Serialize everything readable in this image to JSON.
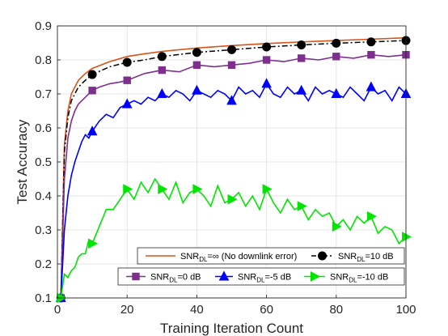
{
  "chart_data": {
    "type": "line",
    "title": "",
    "xlabel": "Training Iteration Count",
    "ylabel": "Test Accuracy",
    "xlim": [
      0,
      100
    ],
    "ylim": [
      0.1,
      0.9
    ],
    "xticks": [
      "0",
      "20",
      "40",
      "60",
      "80",
      "100"
    ],
    "yticks": [
      "0.1",
      "0.2",
      "0.3",
      "0.4",
      "0.5",
      "0.6",
      "0.7",
      "0.8",
      "0.9"
    ],
    "grid": true,
    "series": [
      {
        "name": "=∞ (No downlink error)",
        "color": "#d95319",
        "marker": "none",
        "x": [
          1,
          2,
          3,
          4,
          5,
          6,
          8,
          10,
          15,
          20,
          25,
          30,
          40,
          50,
          60,
          70,
          80,
          90,
          100
        ],
        "y": [
          0.1,
          0.55,
          0.65,
          0.7,
          0.72,
          0.74,
          0.76,
          0.775,
          0.795,
          0.81,
          0.818,
          0.825,
          0.835,
          0.842,
          0.848,
          0.853,
          0.857,
          0.861,
          0.865
        ]
      },
      {
        "name": "=10 dB",
        "color": "#000000",
        "marker": "circle",
        "x": [
          1,
          2,
          3,
          4,
          5,
          6,
          8,
          10,
          15,
          20,
          25,
          30,
          40,
          50,
          60,
          70,
          80,
          90,
          100
        ],
        "y": [
          0.1,
          0.53,
          0.63,
          0.68,
          0.7,
          0.72,
          0.74,
          0.757,
          0.78,
          0.793,
          0.8,
          0.81,
          0.822,
          0.83,
          0.838,
          0.844,
          0.849,
          0.853,
          0.857
        ]
      },
      {
        "name": "=0 dB",
        "color": "#7e2f8e",
        "marker": "square",
        "x": [
          1,
          2,
          3,
          4,
          5,
          6,
          8,
          10,
          12,
          15,
          18,
          20,
          25,
          30,
          35,
          40,
          45,
          50,
          55,
          60,
          65,
          70,
          75,
          80,
          85,
          90,
          95,
          100
        ],
        "y": [
          0.1,
          0.45,
          0.57,
          0.62,
          0.65,
          0.67,
          0.69,
          0.71,
          0.72,
          0.73,
          0.735,
          0.74,
          0.76,
          0.77,
          0.765,
          0.785,
          0.78,
          0.785,
          0.79,
          0.8,
          0.795,
          0.805,
          0.8,
          0.81,
          0.805,
          0.815,
          0.81,
          0.815
        ]
      },
      {
        "name": "=-5 dB",
        "color": "#0000ff",
        "marker": "triangle-up",
        "x": [
          1,
          2,
          3,
          4,
          5,
          6,
          7,
          8,
          9,
          10,
          12,
          14,
          16,
          18,
          20,
          22,
          24,
          26,
          28,
          30,
          32,
          34,
          36,
          38,
          40,
          42,
          44,
          46,
          48,
          50,
          52,
          54,
          56,
          58,
          60,
          62,
          64,
          66,
          68,
          70,
          72,
          74,
          76,
          78,
          80,
          82,
          84,
          86,
          88,
          90,
          92,
          94,
          96,
          98,
          100
        ],
        "y": [
          0.1,
          0.3,
          0.4,
          0.46,
          0.5,
          0.53,
          0.56,
          0.58,
          0.57,
          0.59,
          0.62,
          0.64,
          0.63,
          0.66,
          0.67,
          0.68,
          0.67,
          0.69,
          0.68,
          0.7,
          0.69,
          0.71,
          0.7,
          0.68,
          0.71,
          0.7,
          0.69,
          0.71,
          0.7,
          0.68,
          0.72,
          0.7,
          0.71,
          0.69,
          0.73,
          0.7,
          0.69,
          0.72,
          0.7,
          0.71,
          0.68,
          0.72,
          0.7,
          0.71,
          0.7,
          0.69,
          0.72,
          0.7,
          0.68,
          0.72,
          0.7,
          0.71,
          0.68,
          0.72,
          0.7
        ]
      },
      {
        "name": "=-10 dB",
        "color": "#00e600",
        "marker": "triangle-right",
        "x": [
          1,
          2,
          3,
          4,
          5,
          6,
          7,
          8,
          9,
          10,
          12,
          14,
          16,
          18,
          20,
          22,
          24,
          26,
          28,
          30,
          32,
          34,
          36,
          38,
          40,
          42,
          44,
          46,
          48,
          50,
          52,
          54,
          56,
          58,
          60,
          62,
          64,
          66,
          68,
          70,
          72,
          74,
          76,
          78,
          80,
          82,
          84,
          86,
          88,
          90,
          92,
          94,
          96,
          98,
          100
        ],
        "y": [
          0.1,
          0.17,
          0.16,
          0.18,
          0.19,
          0.22,
          0.23,
          0.23,
          0.27,
          0.26,
          0.31,
          0.36,
          0.36,
          0.39,
          0.42,
          0.39,
          0.44,
          0.41,
          0.45,
          0.42,
          0.39,
          0.44,
          0.38,
          0.41,
          0.42,
          0.4,
          0.37,
          0.43,
          0.38,
          0.39,
          0.41,
          0.37,
          0.4,
          0.36,
          0.42,
          0.38,
          0.35,
          0.39,
          0.36,
          0.37,
          0.33,
          0.36,
          0.34,
          0.35,
          0.31,
          0.33,
          0.3,
          0.34,
          0.32,
          0.34,
          0.29,
          0.31,
          0.3,
          0.26,
          0.28
        ]
      }
    ],
    "legends": [
      {
        "position": "bottom-right-upper",
        "entries": [
          0,
          1
        ]
      },
      {
        "position": "bottom-right-lower",
        "entries": [
          2,
          3,
          4
        ]
      }
    ],
    "legend_prefix": "SNR",
    "legend_subscript": "DL"
  }
}
